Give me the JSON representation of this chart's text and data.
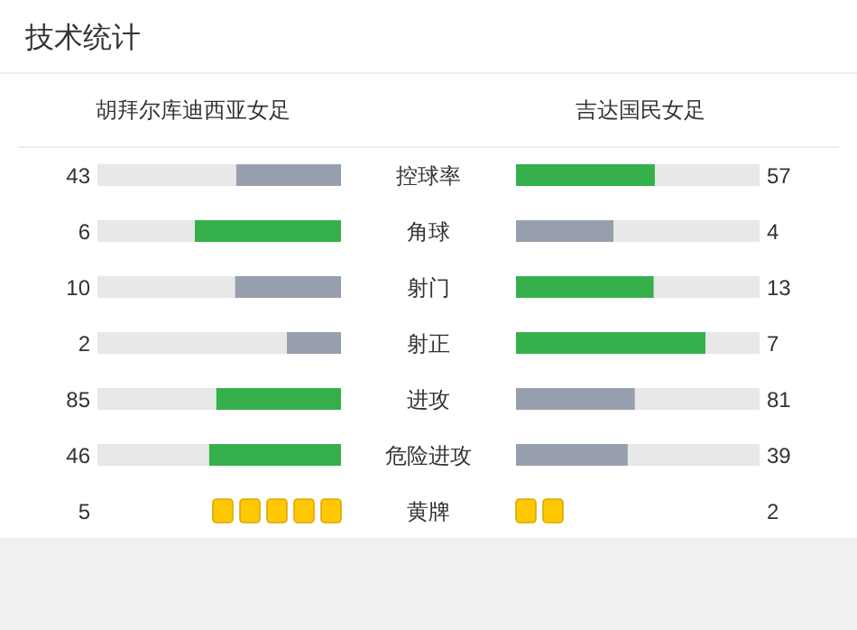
{
  "chart_data": [
    {
      "type": "other",
      "title": "技术统计",
      "categories": [
        "控球率",
        "角球",
        "射门",
        "射正",
        "进攻",
        "危险进攻"
      ],
      "data_labels": true,
      "series": [
        {
          "name": "胡拜尔库迪西亚女足",
          "values": [
            43,
            6,
            10,
            2,
            85,
            46
          ],
          "colors": [
            "#979fae",
            "#35b04a",
            "#979fae",
            "#979fae",
            "#35b04a",
            "#35b04a"
          ]
        },
        {
          "name": "吉达国民女足",
          "values": [
            57,
            4,
            13,
            7,
            81,
            39
          ],
          "colors": [
            "#35b04a",
            "#979fae",
            "#35b04a",
            "#35b04a",
            "#979fae",
            "#979fae"
          ]
        }
      ]
    },
    {
      "type": "other",
      "categories": [
        "黄牌"
      ],
      "data_labels": true,
      "series": [
        {
          "color": "#ffc800",
          "values": [
            5
          ]
        },
        {
          "color": "#ffc800",
          "values": [
            2
          ]
        }
      ]
    }
  ]
}
